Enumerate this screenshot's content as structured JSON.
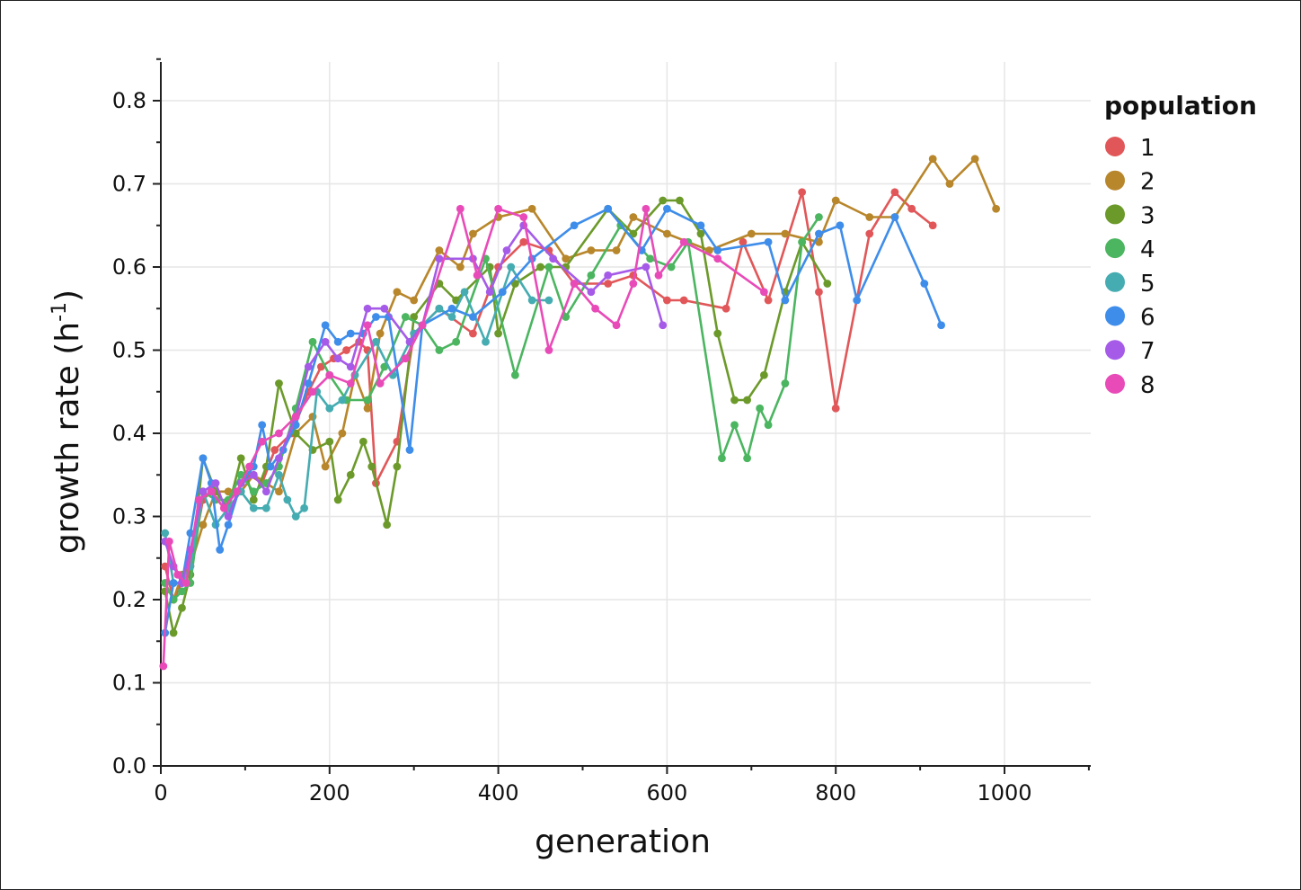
{
  "chart_data": {
    "type": "line",
    "title": "",
    "xlabel": "generation",
    "ylabel": "growth rate (h",
    "ylabel_sup": "-1",
    "ylabel_close": ")",
    "xlim": [
      0,
      1100
    ],
    "ylim": [
      0,
      0.85
    ],
    "xticks": [
      0,
      200,
      400,
      600,
      800,
      1000
    ],
    "xtick_labels": [
      "0",
      "200",
      "400",
      "600",
      "800",
      "1000"
    ],
    "yticks": [
      0,
      0.1,
      0.2,
      0.3,
      0.4,
      0.5,
      0.6,
      0.7,
      0.8
    ],
    "ytick_labels": [
      "0.0",
      "0.1",
      "0.2",
      "0.3",
      "0.4",
      "0.5",
      "0.6",
      "0.7",
      "0.8"
    ],
    "grid": true,
    "legend": {
      "title": "population",
      "placement": "right"
    },
    "series": [
      {
        "name": "1",
        "color": "#E15759",
        "x": [
          5,
          15,
          25,
          35,
          50,
          60,
          75,
          90,
          105,
          120,
          135,
          155,
          175,
          190,
          205,
          220,
          235,
          245,
          255,
          280,
          300,
          330,
          370,
          400,
          430,
          460,
          490,
          530,
          560,
          600,
          620,
          670,
          690,
          720,
          760,
          780,
          800,
          840,
          870,
          890,
          915
        ],
        "y": [
          0.24,
          0.2,
          0.22,
          0.24,
          0.32,
          0.33,
          0.31,
          0.33,
          0.35,
          0.34,
          0.38,
          0.4,
          0.45,
          0.48,
          0.49,
          0.5,
          0.51,
          0.5,
          0.34,
          0.39,
          0.52,
          0.55,
          0.52,
          0.6,
          0.63,
          0.62,
          0.58,
          0.58,
          0.59,
          0.56,
          0.56,
          0.55,
          0.63,
          0.56,
          0.69,
          0.57,
          0.43,
          0.64,
          0.69,
          0.67,
          0.65
        ]
      },
      {
        "name": "2",
        "color": "#B8862B",
        "x": [
          5,
          15,
          25,
          35,
          50,
          65,
          80,
          95,
          110,
          125,
          140,
          160,
          180,
          195,
          215,
          230,
          245,
          260,
          280,
          300,
          330,
          355,
          370,
          400,
          440,
          480,
          510,
          540,
          560,
          600,
          650,
          700,
          740,
          780,
          800,
          840,
          870,
          915,
          935,
          965,
          990
        ],
        "y": [
          0.22,
          0.2,
          0.23,
          0.24,
          0.29,
          0.33,
          0.33,
          0.33,
          0.35,
          0.34,
          0.33,
          0.4,
          0.42,
          0.36,
          0.4,
          0.47,
          0.43,
          0.52,
          0.57,
          0.56,
          0.62,
          0.6,
          0.64,
          0.66,
          0.67,
          0.61,
          0.62,
          0.62,
          0.66,
          0.64,
          0.62,
          0.64,
          0.64,
          0.63,
          0.68,
          0.66,
          0.66,
          0.73,
          0.7,
          0.73,
          0.67
        ]
      },
      {
        "name": "3",
        "color": "#6C9A2A",
        "x": [
          5,
          15,
          25,
          35,
          50,
          65,
          80,
          95,
          110,
          125,
          140,
          160,
          180,
          200,
          210,
          225,
          240,
          250,
          268,
          280,
          300,
          330,
          350,
          390,
          400,
          420,
          450,
          480,
          530,
          560,
          595,
          615,
          640,
          660,
          680,
          695,
          715,
          740,
          760,
          790
        ],
        "y": [
          0.21,
          0.16,
          0.19,
          0.23,
          0.37,
          0.33,
          0.31,
          0.37,
          0.32,
          0.36,
          0.46,
          0.4,
          0.38,
          0.39,
          0.32,
          0.35,
          0.39,
          0.36,
          0.29,
          0.36,
          0.54,
          0.58,
          0.56,
          0.6,
          0.52,
          0.58,
          0.6,
          0.6,
          0.67,
          0.64,
          0.68,
          0.68,
          0.64,
          0.52,
          0.44,
          0.44,
          0.47,
          0.57,
          0.63,
          0.58
        ]
      },
      {
        "name": "4",
        "color": "#4BB560",
        "x": [
          5,
          15,
          25,
          35,
          50,
          65,
          80,
          95,
          110,
          125,
          140,
          160,
          180,
          200,
          220,
          245,
          265,
          290,
          310,
          330,
          350,
          385,
          420,
          460,
          480,
          510,
          545,
          580,
          605,
          625,
          665,
          680,
          695,
          710,
          720,
          740,
          760,
          780
        ],
        "y": [
          0.22,
          0.2,
          0.21,
          0.22,
          0.33,
          0.32,
          0.32,
          0.35,
          0.33,
          0.34,
          0.36,
          0.43,
          0.51,
          0.47,
          0.44,
          0.44,
          0.48,
          0.54,
          0.53,
          0.5,
          0.51,
          0.61,
          0.47,
          0.6,
          0.54,
          0.59,
          0.65,
          0.61,
          0.6,
          0.63,
          0.37,
          0.41,
          0.37,
          0.43,
          0.41,
          0.46,
          0.63,
          0.66
        ]
      },
      {
        "name": "5",
        "color": "#45ACB1",
        "x": [
          5,
          15,
          25,
          35,
          50,
          65,
          80,
          95,
          110,
          125,
          140,
          150,
          160,
          170,
          185,
          200,
          215,
          230,
          255,
          275,
          300,
          330,
          345,
          360,
          385,
          415,
          440,
          460
        ],
        "y": [
          0.28,
          0.22,
          0.22,
          0.24,
          0.33,
          0.29,
          0.31,
          0.33,
          0.31,
          0.31,
          0.35,
          0.32,
          0.3,
          0.31,
          0.45,
          0.43,
          0.44,
          0.47,
          0.51,
          0.47,
          0.52,
          0.55,
          0.54,
          0.57,
          0.51,
          0.6,
          0.56,
          0.56
        ]
      },
      {
        "name": "6",
        "color": "#3E8DEA",
        "x": [
          5,
          15,
          25,
          35,
          50,
          60,
          70,
          80,
          95,
          110,
          120,
          130,
          145,
          160,
          175,
          195,
          210,
          225,
          240,
          255,
          270,
          295,
          310,
          345,
          370,
          405,
          440,
          490,
          530,
          570,
          600,
          640,
          660,
          720,
          740,
          780,
          805,
          825,
          870,
          905,
          925
        ],
        "y": [
          0.16,
          0.22,
          0.22,
          0.28,
          0.37,
          0.34,
          0.26,
          0.29,
          0.34,
          0.36,
          0.41,
          0.36,
          0.38,
          0.41,
          0.46,
          0.53,
          0.51,
          0.52,
          0.52,
          0.54,
          0.54,
          0.38,
          0.53,
          0.55,
          0.54,
          0.57,
          0.61,
          0.65,
          0.67,
          0.62,
          0.67,
          0.65,
          0.62,
          0.63,
          0.56,
          0.64,
          0.65,
          0.56,
          0.66,
          0.58,
          0.53
        ]
      },
      {
        "name": "7",
        "color": "#A55BE8",
        "x": [
          5,
          15,
          25,
          35,
          50,
          65,
          80,
          95,
          110,
          125,
          140,
          160,
          175,
          195,
          210,
          225,
          245,
          265,
          295,
          310,
          330,
          370,
          390,
          410,
          430,
          465,
          510,
          530,
          575,
          595
        ],
        "y": [
          0.27,
          0.24,
          0.22,
          0.26,
          0.33,
          0.34,
          0.3,
          0.34,
          0.35,
          0.33,
          0.37,
          0.42,
          0.48,
          0.51,
          0.49,
          0.48,
          0.55,
          0.55,
          0.51,
          0.53,
          0.61,
          0.61,
          0.57,
          0.62,
          0.65,
          0.61,
          0.57,
          0.59,
          0.6,
          0.53
        ]
      },
      {
        "name": "8",
        "color": "#E84BB8",
        "x": [
          3,
          10,
          20,
          30,
          45,
          60,
          75,
          90,
          105,
          120,
          140,
          160,
          180,
          200,
          225,
          245,
          260,
          290,
          310,
          355,
          375,
          400,
          430,
          460,
          490,
          515,
          540,
          560,
          575,
          590,
          620,
          660,
          715
        ],
        "y": [
          0.12,
          0.27,
          0.23,
          0.22,
          0.32,
          0.33,
          0.31,
          0.33,
          0.36,
          0.39,
          0.4,
          0.42,
          0.45,
          0.47,
          0.46,
          0.53,
          0.46,
          0.49,
          0.53,
          0.67,
          0.59,
          0.67,
          0.66,
          0.5,
          0.58,
          0.55,
          0.53,
          0.58,
          0.67,
          0.59,
          0.63,
          0.61,
          0.57
        ]
      }
    ]
  }
}
